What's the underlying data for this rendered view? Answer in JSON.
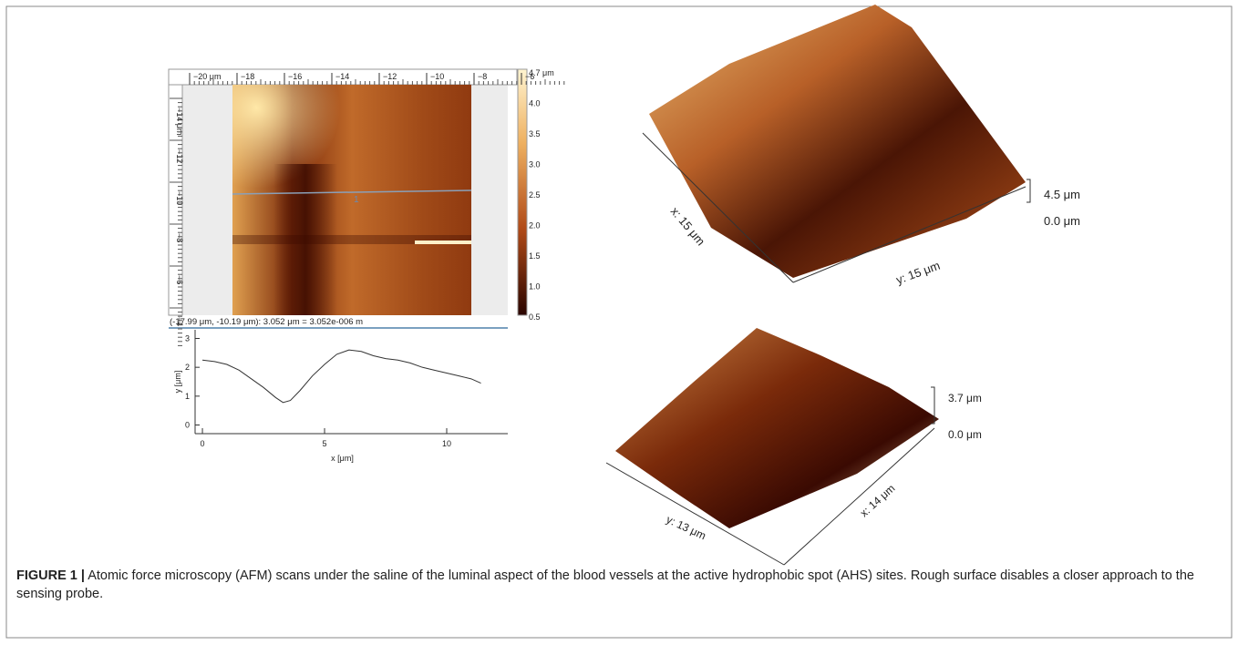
{
  "afm_map": {
    "top_ruler": [
      "−20 μm",
      "−18",
      "−16",
      "−14",
      "−12",
      "−10",
      "−8",
      "−6"
    ],
    "left_ruler": [
      "−14 μm",
      "−12",
      "−10",
      "−8",
      "−6",
      "−4"
    ],
    "colorbar_labels": [
      "4.7 μm",
      "4.0",
      "3.5",
      "3.0",
      "2.5",
      "2.0",
      "1.5",
      "1.0",
      "0.5"
    ],
    "line_marker": "1",
    "readout": "(-17.99 μm, -10.19 μm): 3.052 μm = 3.052e-006 m"
  },
  "profile": {
    "type": "line",
    "x_label": "x [μm]",
    "y_label": "y [μm]",
    "xlim": [
      -0.3,
      12.5
    ],
    "ylim": [
      -0.3,
      3.3
    ],
    "xticks": [
      0,
      5,
      10
    ],
    "yticks": [
      0,
      1,
      2,
      3
    ],
    "x": [
      0,
      0.5,
      1,
      1.5,
      2,
      2.5,
      3,
      3.3,
      3.6,
      4,
      4.5,
      5,
      5.5,
      6,
      6.5,
      7,
      7.5,
      8,
      8.5,
      9,
      9.5,
      10,
      10.5,
      11,
      11.4
    ],
    "values": [
      2.25,
      2.2,
      2.1,
      1.9,
      1.6,
      1.3,
      0.95,
      0.78,
      0.85,
      1.2,
      1.7,
      2.1,
      2.45,
      2.6,
      2.55,
      2.4,
      2.3,
      2.25,
      2.15,
      2.0,
      1.9,
      1.8,
      1.7,
      1.6,
      1.45
    ]
  },
  "render_top": {
    "x_label": "x: 15 μm",
    "y_label": "y: 15 μm",
    "z_top": "4.5 μm",
    "z_bottom": "0.0 μm"
  },
  "render_bottom": {
    "y_label": "y: 13 μm",
    "x_label": "x: 14 μm",
    "z_top": "3.7 μm",
    "z_bottom": "0.0 μm"
  },
  "caption": {
    "label": "FIGURE 1 |",
    "text": " Atomic force microscopy (AFM) scans under the saline of the luminal aspect of the blood vessels at the active hydrophobic spot (AHS) sites. Rough surface disables a closer approach to the sensing probe."
  }
}
